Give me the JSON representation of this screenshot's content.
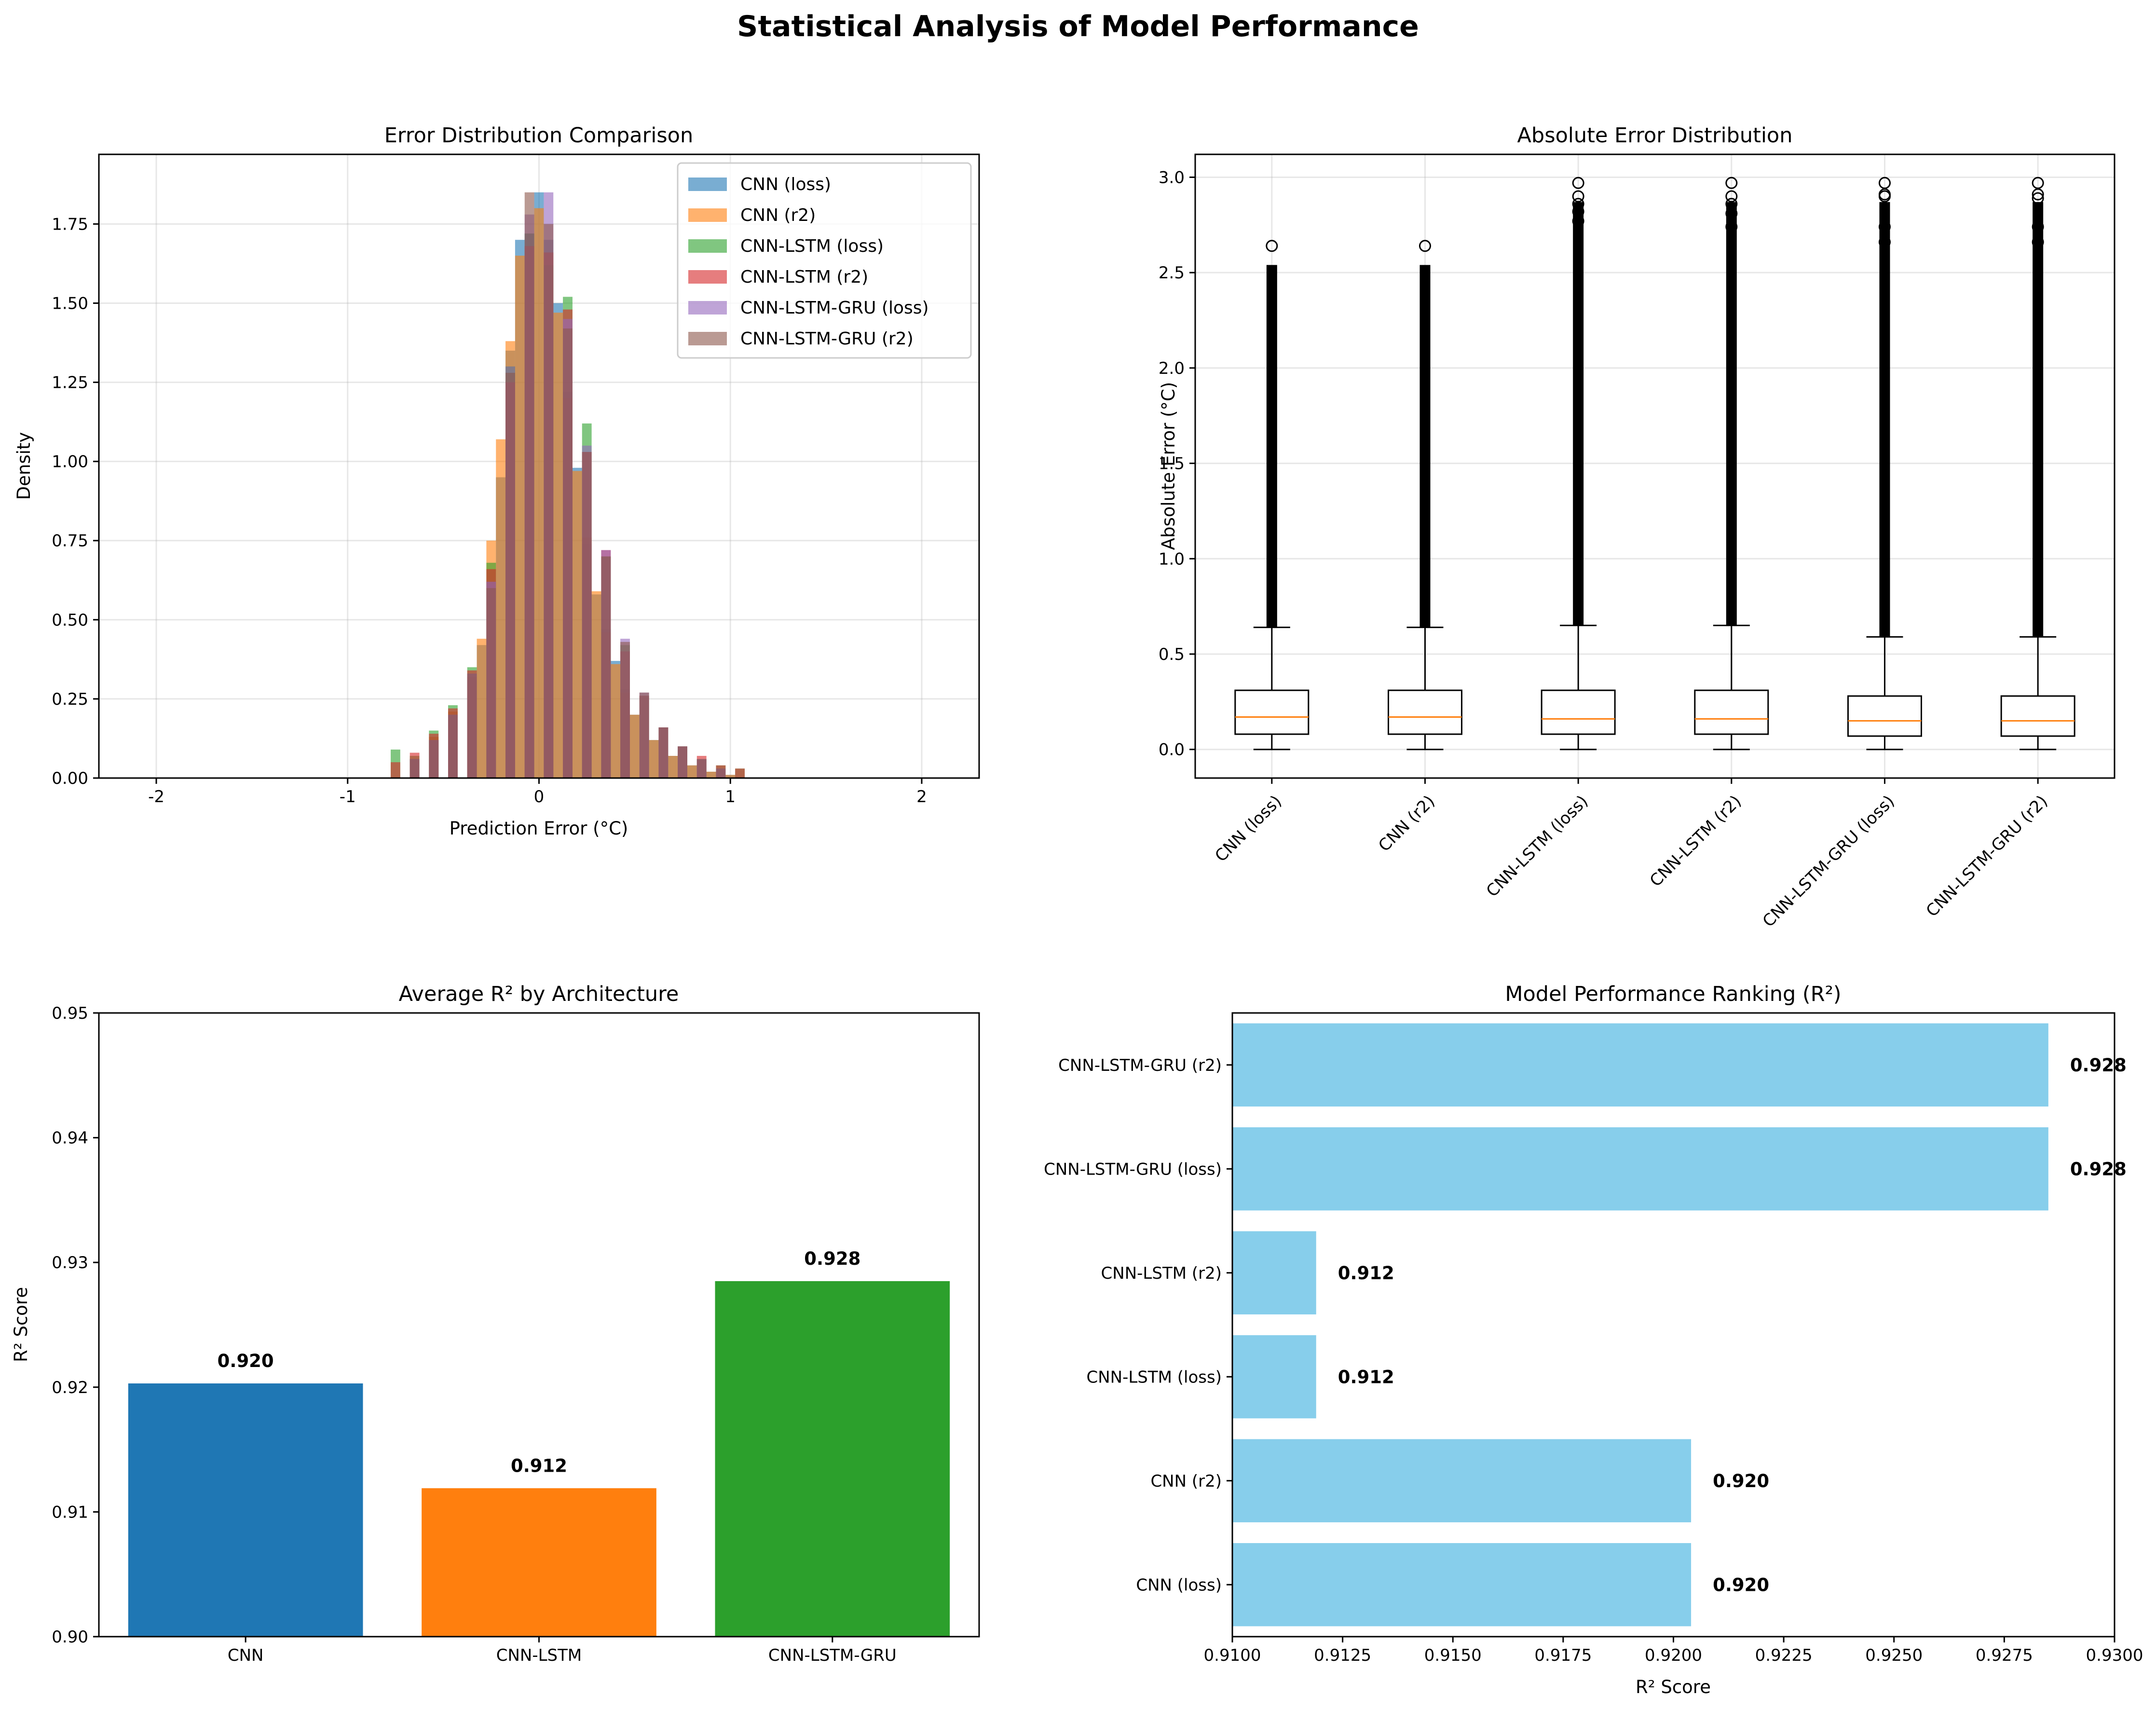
{
  "figure": {
    "title": "Statistical Analysis of Model Performance"
  },
  "colors": {
    "tab_blue": "#1f77b4",
    "tab_orange": "#ff7f0e",
    "tab_green": "#2ca02c",
    "tab_red": "#d62728",
    "tab_purple": "#9467bd",
    "tab_brown": "#8c564b",
    "skyblue": "#87ceeb"
  },
  "chart_data": [
    {
      "type": "histogram",
      "title": "Error Distribution Comparison",
      "xlabel": "Prediction Error (°C)",
      "ylabel": "Density",
      "xlim": [
        -2.3,
        2.3
      ],
      "ylim": [
        0,
        1.97
      ],
      "xticks": [
        -2,
        -1,
        0,
        1,
        2
      ],
      "yticks": [
        0.0,
        0.25,
        0.5,
        0.75,
        1.0,
        1.25,
        1.5,
        1.75
      ],
      "grid": true,
      "legend_position": "top-right",
      "series": [
        {
          "name": "CNN (loss)",
          "color": "#1f77b4",
          "x": [
            -0.65,
            -0.55,
            -0.45,
            -0.35,
            -0.3,
            -0.25,
            -0.2,
            -0.15,
            -0.1,
            -0.05,
            0.0,
            0.05,
            0.1,
            0.15,
            0.2,
            0.25,
            0.3,
            0.35,
            0.4,
            0.45,
            0.5,
            0.6,
            0.7,
            0.8,
            0.9,
            1.0
          ],
          "y": [
            0.06,
            0.12,
            0.2,
            0.31,
            0.42,
            0.62,
            0.95,
            1.35,
            1.7,
            1.72,
            1.85,
            1.7,
            1.5,
            1.22,
            0.98,
            0.74,
            0.58,
            0.47,
            0.37,
            0.28,
            0.2,
            0.12,
            0.07,
            0.04,
            0.02,
            0.01
          ]
        },
        {
          "name": "CNN (r2)",
          "color": "#ff7f0e",
          "x": [
            -0.65,
            -0.55,
            -0.45,
            -0.35,
            -0.3,
            -0.25,
            -0.2,
            -0.15,
            -0.1,
            -0.05,
            0.0,
            0.05,
            0.1,
            0.15,
            0.2,
            0.25,
            0.3,
            0.35,
            0.4,
            0.45,
            0.5,
            0.6,
            0.7,
            0.8,
            0.9,
            1.0
          ],
          "y": [
            0.06,
            0.13,
            0.21,
            0.32,
            0.44,
            0.75,
            1.07,
            1.38,
            1.65,
            1.68,
            1.8,
            1.66,
            1.47,
            1.2,
            0.97,
            0.76,
            0.59,
            0.46,
            0.36,
            0.27,
            0.2,
            0.12,
            0.07,
            0.04,
            0.02,
            0.01
          ]
        },
        {
          "name": "CNN-LSTM (loss)",
          "color": "#2ca02c",
          "x": [
            -0.75,
            -0.65,
            -0.55,
            -0.45,
            -0.35,
            -0.25,
            -0.15,
            -0.05,
            0.05,
            0.15,
            0.25,
            0.35,
            0.45,
            0.55,
            0.65,
            0.75,
            0.85,
            0.95,
            1.05
          ],
          "y": [
            0.09,
            0.07,
            0.15,
            0.23,
            0.35,
            0.68,
            1.3,
            1.72,
            1.62,
            1.52,
            1.12,
            0.7,
            0.42,
            0.26,
            0.16,
            0.1,
            0.06,
            0.04,
            0.03
          ]
        },
        {
          "name": "CNN-LSTM (r2)",
          "color": "#d62728",
          "x": [
            -0.75,
            -0.65,
            -0.55,
            -0.45,
            -0.35,
            -0.25,
            -0.15,
            -0.05,
            0.05,
            0.15,
            0.25,
            0.35,
            0.45,
            0.55,
            0.65,
            0.75,
            0.85,
            0.95,
            1.05
          ],
          "y": [
            0.05,
            0.08,
            0.14,
            0.22,
            0.34,
            0.66,
            1.25,
            1.68,
            1.66,
            1.48,
            1.03,
            0.72,
            0.4,
            0.26,
            0.16,
            0.1,
            0.07,
            0.04,
            0.03
          ]
        },
        {
          "name": "CNN-LSTM-GRU (loss)",
          "color": "#9467bd",
          "x": [
            -0.65,
            -0.55,
            -0.45,
            -0.35,
            -0.25,
            -0.15,
            -0.05,
            0.05,
            0.15,
            0.25,
            0.35,
            0.45,
            0.55,
            0.65,
            0.75,
            0.85,
            0.95
          ],
          "y": [
            0.06,
            0.12,
            0.2,
            0.33,
            0.62,
            1.3,
            1.78,
            1.85,
            1.45,
            1.05,
            0.72,
            0.44,
            0.27,
            0.16,
            0.1,
            0.06,
            0.03
          ]
        },
        {
          "name": "CNN-LSTM-GRU (r2)",
          "color": "#8c564b",
          "x": [
            -0.65,
            -0.55,
            -0.45,
            -0.35,
            -0.25,
            -0.15,
            -0.05,
            0.05,
            0.15,
            0.25,
            0.35,
            0.45,
            0.55,
            0.65,
            0.75,
            0.85,
            0.95
          ],
          "y": [
            0.06,
            0.12,
            0.2,
            0.33,
            0.6,
            1.28,
            1.85,
            1.75,
            1.42,
            1.03,
            0.7,
            0.43,
            0.27,
            0.16,
            0.1,
            0.06,
            0.03
          ]
        }
      ]
    },
    {
      "type": "box",
      "title": "Absolute Error Distribution",
      "ylabel": "Absolute Error (°C)",
      "ylim": [
        -0.15,
        3.12
      ],
      "yticks": [
        0.0,
        0.5,
        1.0,
        1.5,
        2.0,
        2.5,
        3.0
      ],
      "grid": true,
      "categories": [
        "CNN (loss)",
        "CNN (r2)",
        "CNN-LSTM (loss)",
        "CNN-LSTM (r2)",
        "CNN-LSTM-GRU (loss)",
        "CNN-LSTM-GRU (r2)"
      ],
      "boxes": [
        {
          "min": 0.0,
          "q1": 0.08,
          "median": 0.17,
          "q3": 0.31,
          "whisker_high": 0.64,
          "flier_max": 2.64,
          "fliers_sparse": [
            2.64
          ]
        },
        {
          "min": 0.0,
          "q1": 0.08,
          "median": 0.17,
          "q3": 0.31,
          "whisker_high": 0.64,
          "flier_max": 2.64,
          "fliers_sparse": [
            2.64
          ]
        },
        {
          "min": 0.0,
          "q1": 0.08,
          "median": 0.16,
          "q3": 0.31,
          "whisker_high": 0.65,
          "flier_max": 2.97,
          "fliers_sparse": [
            2.97,
            2.9,
            2.86,
            2.82,
            2.77
          ]
        },
        {
          "min": 0.0,
          "q1": 0.08,
          "median": 0.16,
          "q3": 0.31,
          "whisker_high": 0.65,
          "flier_max": 2.97,
          "fliers_sparse": [
            2.97,
            2.9,
            2.86,
            2.81,
            2.74
          ]
        },
        {
          "min": 0.0,
          "q1": 0.07,
          "median": 0.15,
          "q3": 0.28,
          "whisker_high": 0.59,
          "flier_max": 2.97,
          "fliers_sparse": [
            2.97,
            2.91,
            2.9,
            2.74,
            2.66
          ]
        },
        {
          "min": 0.0,
          "q1": 0.07,
          "median": 0.15,
          "q3": 0.28,
          "whisker_high": 0.59,
          "flier_max": 2.97,
          "fliers_sparse": [
            2.97,
            2.91,
            2.89,
            2.74,
            2.66
          ]
        }
      ]
    },
    {
      "type": "bar",
      "title": "Average R² by Architecture",
      "ylabel": "R² Score",
      "ylim": [
        0.9,
        0.95
      ],
      "yticks": [
        0.9,
        0.91,
        0.92,
        0.93,
        0.94,
        0.95
      ],
      "grid": false,
      "categories": [
        "CNN",
        "CNN-LSTM",
        "CNN-LSTM-GRU"
      ],
      "values": [
        0.9203,
        0.9119,
        0.9285
      ],
      "labels": [
        "0.920",
        "0.912",
        "0.928"
      ],
      "colors": [
        "#1f77b4",
        "#ff7f0e",
        "#2ca02c"
      ]
    },
    {
      "type": "barh",
      "title": "Model Performance Ranking (R²)",
      "xlabel": "R² Score",
      "xlim": [
        0.91,
        0.93
      ],
      "xticks": [
        0.91,
        0.9125,
        0.915,
        0.9175,
        0.92,
        0.9225,
        0.925,
        0.9275,
        0.93
      ],
      "grid": false,
      "categories": [
        "CNN (loss)",
        "CNN (r2)",
        "CNN-LSTM (loss)",
        "CNN-LSTM (r2)",
        "CNN-LSTM-GRU (loss)",
        "CNN-LSTM-GRU (r2)"
      ],
      "values": [
        0.9204,
        0.9204,
        0.9119,
        0.9119,
        0.9285,
        0.9285
      ],
      "labels": [
        "0.920",
        "0.920",
        "0.912",
        "0.912",
        "0.928",
        "0.928"
      ],
      "color": "#87ceeb"
    }
  ]
}
